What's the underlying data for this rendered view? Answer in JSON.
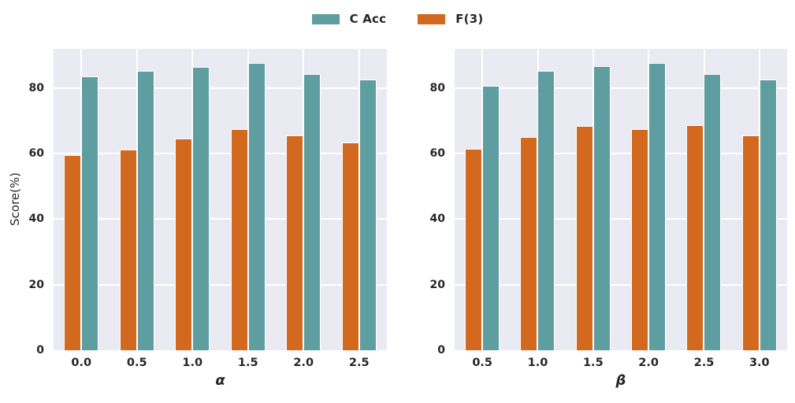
{
  "figure": {
    "background": "#ffffff",
    "plot_background": "#eaeaf2",
    "grid_color": "#ffffff",
    "text_color": "#262626"
  },
  "legend": {
    "entries": [
      {
        "label": "C Acc",
        "color": "#5f9ea0"
      },
      {
        "label": "F(3)",
        "color": "#d2691e"
      }
    ]
  },
  "chart_data": [
    {
      "type": "bar",
      "title": "",
      "xlabel": "α",
      "ylabel": "Score(%)",
      "categories": [
        "0.0",
        "0.5",
        "1.0",
        "1.5",
        "2.0",
        "2.5"
      ],
      "series": [
        {
          "name": "F(3)",
          "color": "#d2691e",
          "values": [
            59.6,
            61.3,
            64.5,
            67.5,
            65.6,
            63.4
          ]
        },
        {
          "name": "C Acc",
          "color": "#5f9ea0",
          "values": [
            83.6,
            85.2,
            86.5,
            87.7,
            84.4,
            82.7
          ]
        }
      ],
      "yticks": [
        0,
        20,
        40,
        60,
        80
      ],
      "ylim": [
        0,
        92
      ],
      "grid": true,
      "legend_position": "figure-top-center"
    },
    {
      "type": "bar",
      "title": "",
      "xlabel": "β",
      "ylabel": "",
      "categories": [
        "0.5",
        "1.0",
        "1.5",
        "2.0",
        "2.5",
        "3.0"
      ],
      "series": [
        {
          "name": "F(3)",
          "color": "#d2691e",
          "values": [
            61.6,
            65.1,
            68.4,
            67.6,
            68.8,
            65.6
          ]
        },
        {
          "name": "C Acc",
          "color": "#5f9ea0",
          "values": [
            80.7,
            85.2,
            86.6,
            87.7,
            84.4,
            82.7
          ]
        }
      ],
      "yticks": [
        0,
        20,
        40,
        60,
        80
      ],
      "ylim": [
        0,
        92
      ],
      "grid": true,
      "legend_position": "figure-top-center"
    }
  ]
}
